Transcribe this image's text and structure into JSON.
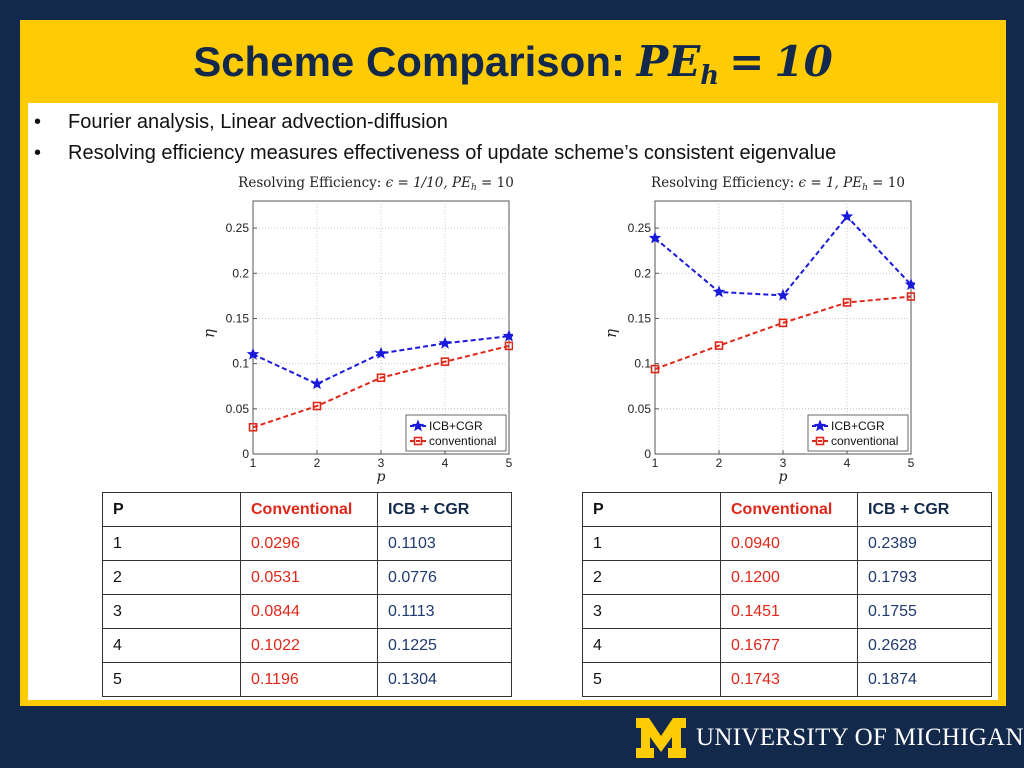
{
  "slide": {
    "title_text": "Scheme Comparison: ",
    "title_math": {
      "base": "PE",
      "sub": "h",
      "eq": "=",
      "value": "10"
    },
    "bullets": [
      "Fourier analysis, Linear advection-diffusion",
      "Resolving efficiency measures effectiveness of update scheme’s consistent eigenvalue"
    ],
    "bullet_glyph": "•"
  },
  "chart_data": [
    {
      "type": "line",
      "title": "Resolving Efficiency: ϵ = 1/10, PE_h = 10",
      "title_plain": "Resolving Efficiency:",
      "title_eps": "ϵ = 1/10,",
      "title_pe": "PE",
      "title_pe_sub": "h",
      "title_pe_val": "= 10",
      "xlabel": "p",
      "ylabel": "η",
      "x": [
        1,
        2,
        3,
        4,
        5
      ],
      "xlim": [
        1,
        5
      ],
      "ylim": [
        0,
        0.28
      ],
      "yticks": [
        0,
        0.05,
        0.1,
        0.15,
        0.2,
        0.25
      ],
      "ytick_labels": [
        "0",
        "0.05",
        "0.1",
        "0.15",
        "0.2",
        "0.25"
      ],
      "xtick_labels": [
        "1",
        "2",
        "3",
        "4",
        "5"
      ],
      "grid": true,
      "legend_position": "bottom-right",
      "series": [
        {
          "name": "ICB+CGR",
          "color": "#1a1adc",
          "marker": "star",
          "values": [
            0.1103,
            0.0776,
            0.1113,
            0.1225,
            0.1304
          ]
        },
        {
          "name": "conventional",
          "color": "#e0281a",
          "marker": "square",
          "values": [
            0.0296,
            0.0531,
            0.0844,
            0.1022,
            0.1196
          ]
        }
      ]
    },
    {
      "type": "line",
      "title": "Resolving Efficiency: ϵ = 1, PE_h = 10",
      "title_plain": "Resolving Efficiency:",
      "title_eps": "ϵ = 1,",
      "title_pe": "PE",
      "title_pe_sub": "h",
      "title_pe_val": "= 10",
      "xlabel": "p",
      "ylabel": "η",
      "x": [
        1,
        2,
        3,
        4,
        5
      ],
      "xlim": [
        1,
        5
      ],
      "ylim": [
        0,
        0.28
      ],
      "yticks": [
        0,
        0.05,
        0.1,
        0.15,
        0.2,
        0.25
      ],
      "ytick_labels": [
        "0",
        "0.05",
        "0.1",
        "0.15",
        "0.2",
        "0.25"
      ],
      "xtick_labels": [
        "1",
        "2",
        "3",
        "4",
        "5"
      ],
      "grid": true,
      "legend_position": "bottom-right",
      "series": [
        {
          "name": "ICB+CGR",
          "color": "#1a1adc",
          "marker": "star",
          "values": [
            0.2389,
            0.1793,
            0.1755,
            0.2628,
            0.1874
          ]
        },
        {
          "name": "conventional",
          "color": "#e0281a",
          "marker": "square",
          "values": [
            0.094,
            0.12,
            0.1451,
            0.1677,
            0.1743
          ]
        }
      ]
    }
  ],
  "tables": [
    {
      "headers": [
        "P",
        "Conventional",
        "ICB + CGR"
      ],
      "rows": [
        [
          "1",
          "0.0296",
          "0.1103"
        ],
        [
          "2",
          "0.0531",
          "0.0776"
        ],
        [
          "3",
          "0.0844",
          "0.1113"
        ],
        [
          "4",
          "0.1022",
          "0.1225"
        ],
        [
          "5",
          "0.1196",
          "0.1304"
        ]
      ]
    },
    {
      "headers": [
        "P",
        "Conventional",
        "ICB + CGR"
      ],
      "rows": [
        [
          "1",
          "0.0940",
          "0.2389"
        ],
        [
          "2",
          "0.1200",
          "0.1793"
        ],
        [
          "3",
          "0.1451",
          "0.1755"
        ],
        [
          "4",
          "0.1677",
          "0.2628"
        ],
        [
          "5",
          "0.1743",
          "0.1874"
        ]
      ]
    }
  ],
  "footer": {
    "university": "UNIVERSITY OF MICHIGAN"
  },
  "colors": {
    "navy": "#13294b",
    "maize": "#ffcb05",
    "series_blue": "#1a1adc",
    "series_red": "#e0281a"
  }
}
